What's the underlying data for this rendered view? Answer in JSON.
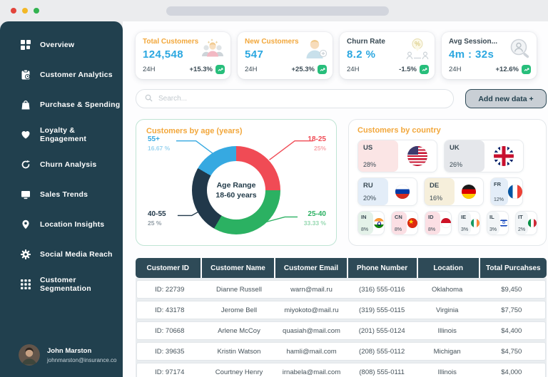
{
  "colors": {
    "accent": "#F2A73B",
    "value-blue": "#2BA7E0",
    "positive-green": "#27BE7B",
    "sidebar-bg": "#21404E",
    "header-bg": "#2E4A57"
  },
  "sidebar": {
    "items": [
      {
        "label": "Overview",
        "icon": "overview-grid-icon"
      },
      {
        "label": "Customer Analytics",
        "icon": "clipboard-icon"
      },
      {
        "label": "Purchase & Spending",
        "icon": "shopping-bag-icon"
      },
      {
        "label": "Loyalty & Engagement",
        "icon": "heart-icon"
      },
      {
        "label": "Churn Analysis",
        "icon": "refresh-icon"
      },
      {
        "label": "Sales Trends",
        "icon": "monitor-icon"
      },
      {
        "label": "Location Insights",
        "icon": "map-pin-icon"
      },
      {
        "label": "Social Media Reach",
        "icon": "gear-icon"
      },
      {
        "label": "Customer Segmentation",
        "icon": "grid-dots-icon"
      }
    ],
    "user": {
      "name": "John Marston",
      "email": "johnmarston@insurance.co"
    }
  },
  "stats": {
    "cards": [
      {
        "title": "Total Customers",
        "value": "124,548",
        "period": "24H",
        "change": "+15.3%",
        "title_style": "accent",
        "icon": "users-group-icon"
      },
      {
        "title": "New Customers",
        "value": "547",
        "period": "24H",
        "change": "+25.3%",
        "title_style": "accent",
        "icon": "user-add-icon"
      },
      {
        "title": "Churn Rate",
        "value": "8.2 %",
        "period": "24H",
        "change": "-1.5%",
        "title_style": "dark",
        "icon": "percent-people-icon"
      },
      {
        "title": "Avg Session...",
        "value": "4m : 32s",
        "period": "24H",
        "change": "+12.6%",
        "title_style": "dark",
        "icon": "session-search-icon"
      }
    ]
  },
  "toolbar": {
    "search_placeholder": "Search...",
    "add_button_label": "Add new data +"
  },
  "age_panel": {
    "title": "Customers by age (years)",
    "center_line1": "Age Range",
    "center_line2": "18-60 years",
    "callouts": [
      {
        "label": "55+",
        "pct": "16.67 %",
        "color": "#36A9E1",
        "pos": "tl"
      },
      {
        "label": "18-25",
        "pct": "25%",
        "color": "#F04B55",
        "pos": "tr"
      },
      {
        "label": "40-55",
        "pct": "25 %",
        "color": "#21384A",
        "pos": "bl"
      },
      {
        "label": "25-40",
        "pct": "33.33 %",
        "color": "#2BB162",
        "pos": "br"
      }
    ]
  },
  "country_panel": {
    "title": "Customers by country",
    "countries": [
      {
        "code": "US",
        "pct": "28%",
        "tint": "#FBE5E5",
        "size": "lg",
        "row": 1
      },
      {
        "code": "UK",
        "pct": "26%",
        "tint": "#E5E7EB",
        "size": "lg",
        "row": 1
      },
      {
        "code": "RU",
        "pct": "20%",
        "tint": "#E3EDF8",
        "size": "md",
        "row": 2
      },
      {
        "code": "DE",
        "pct": "16%",
        "tint": "#F6EFDB",
        "size": "md",
        "row": 2
      },
      {
        "code": "FR",
        "pct": "12%",
        "tint": "#E3EDF8",
        "size": "md2",
        "row": 2
      },
      {
        "code": "IN",
        "pct": "8%",
        "tint": "#E4F2E9",
        "size": "sm",
        "row": 3
      },
      {
        "code": "CN",
        "pct": "8%",
        "tint": "#FBDFE4",
        "size": "sm",
        "row": 3
      },
      {
        "code": "ID",
        "pct": "8%",
        "tint": "#FBDFE4",
        "size": "sm",
        "row": 3
      },
      {
        "code": "IE",
        "pct": "3%",
        "tint": "#F2F5F7",
        "size": "xs",
        "row": 3
      },
      {
        "code": "IL",
        "pct": "3%",
        "tint": "#F2F5F7",
        "size": "xs",
        "row": 3
      },
      {
        "code": "IT",
        "pct": "2%",
        "tint": "#F2F5F7",
        "size": "xs",
        "row": 3
      }
    ]
  },
  "chart_data": [
    {
      "type": "pie",
      "title": "Customers by age (years)",
      "labels": [
        "18-25",
        "25-40",
        "40-55",
        "55+"
      ],
      "values": [
        25,
        33.33,
        25,
        16.67
      ],
      "colors": [
        "#F04B55",
        "#2BB162",
        "#21384A",
        "#36A9E1"
      ],
      "center_label": "Age Range 18-60 years",
      "legend_position": "callout-labels",
      "donut": true
    },
    {
      "type": "grid",
      "title": "Customers by country",
      "categories": [
        "US",
        "UK",
        "RU",
        "DE",
        "FR",
        "IN",
        "CN",
        "ID",
        "IE",
        "IL",
        "IT"
      ],
      "values": [
        28,
        26,
        20,
        16,
        12,
        8,
        8,
        8,
        3,
        3,
        2
      ],
      "unit": "%"
    }
  ],
  "table": {
    "headers": [
      "Customer ID",
      "Customer Name",
      "Customer Email",
      "Phone Number",
      "Location",
      "Total Purcahses"
    ],
    "rows": [
      [
        "ID: 22739",
        "Dianne Russell",
        "warn@mail.ru",
        "(316) 555-0116",
        "Oklahoma",
        "$9,450"
      ],
      [
        "ID: 43178",
        "Jerome Bell",
        "miyokoto@mail.ru",
        "(319) 555-0115",
        "Virginia",
        "$7,750"
      ],
      [
        "ID: 70668",
        "Arlene McCoy",
        "quasiah@mail.com",
        "(201) 555-0124",
        "Illinois",
        "$4,400"
      ],
      [
        "ID: 39635",
        "Kristin Watson",
        "hamli@mail.com",
        "(208) 555-0112",
        "Michigan",
        "$4,750"
      ],
      [
        "ID: 97174",
        "Courtney Henry",
        "irnabela@mail.com",
        "(808) 555-0111",
        "Illinois",
        "$4,000"
      ]
    ]
  }
}
